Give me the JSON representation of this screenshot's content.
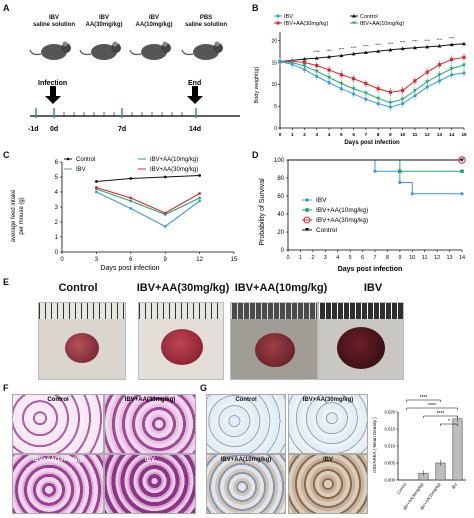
{
  "panels": {
    "A": "A",
    "B": "B",
    "C": "C",
    "D": "D",
    "E": "E",
    "F": "F",
    "G": "G"
  },
  "panelA": {
    "groups": [
      {
        "line1": "IBV",
        "line2": "saline solution"
      },
      {
        "line1": "IBV",
        "line2": "AA(30mg/kg)"
      },
      {
        "line1": "IBV",
        "line2": "AA(10mg/kg)"
      },
      {
        "line1": "PBS",
        "line2": "saline solution"
      }
    ],
    "infection_label": "Infection",
    "end_label": "End",
    "ticks": [
      "-1d",
      "0d",
      "7d",
      "14d"
    ]
  },
  "panelB": {
    "legend": [
      "IBV",
      "IBV+AA(30mg/kg)",
      "Control",
      "IBV+AA(10mg/kg)"
    ],
    "colors": {
      "ibv": "#3b9be0",
      "aa30": "#e0262b",
      "control": "#111111",
      "aa10": "#23a86b"
    },
    "ylabel": "Body weight(g)",
    "xlabel": "Days post infection",
    "yticks": [
      "0",
      "5",
      "10",
      "15",
      "20"
    ]
  },
  "chart_data": [
    {
      "type": "line",
      "panel": "B",
      "xlabel": "Days post infection",
      "ylabel": "Body weight(g)",
      "x": [
        0,
        1,
        2,
        3,
        4,
        5,
        6,
        7,
        8,
        9,
        10,
        11,
        12,
        13,
        14,
        15
      ],
      "ylim": [
        0,
        22
      ],
      "series": [
        {
          "name": "Control",
          "values": [
            15.2,
            15.5,
            15.8,
            16.0,
            16.3,
            16.6,
            17.0,
            17.3,
            17.6,
            17.9,
            18.2,
            18.4,
            18.6,
            18.8,
            19.1,
            19.3
          ]
        },
        {
          "name": "IBV+AA(30mg/kg)",
          "values": [
            15.2,
            15.3,
            15.0,
            14.3,
            13.3,
            12.2,
            11.3,
            10.2,
            9.0,
            8.2,
            8.6,
            10.8,
            12.8,
            14.5,
            15.7,
            16.2
          ]
        },
        {
          "name": "IBV+AA(10mg/kg)",
          "values": [
            15.2,
            15.0,
            14.2,
            13.0,
            11.6,
            10.2,
            9.0,
            8.0,
            6.8,
            5.8,
            6.6,
            8.6,
            10.6,
            12.2,
            13.6,
            14.4
          ]
        },
        {
          "name": "IBV",
          "values": [
            15.2,
            14.6,
            13.4,
            11.8,
            10.4,
            9.0,
            7.8,
            6.6,
            5.6,
            4.8,
            5.6,
            7.4,
            9.4,
            10.8,
            12.2,
            12.6
          ]
        }
      ]
    },
    {
      "type": "line",
      "panel": "C",
      "xlabel": "Days post infection",
      "ylabel": "average feed intake per mouse (g)",
      "x": [
        3,
        6,
        9,
        12
      ],
      "xticks": [
        0,
        3,
        6,
        9,
        12,
        15
      ],
      "yticks": [
        0,
        1,
        2,
        3,
        4,
        5,
        6
      ],
      "xlim": [
        0,
        15
      ],
      "ylim": [
        0,
        6
      ],
      "series": [
        {
          "name": "Control",
          "values": [
            4.7,
            4.9,
            5.0,
            5.1
          ]
        },
        {
          "name": "IBV",
          "values": [
            4.0,
            2.9,
            1.7,
            3.4
          ]
        },
        {
          "name": "IBV+AA(10mg/kg)",
          "values": [
            4.2,
            3.4,
            2.5,
            3.6
          ]
        },
        {
          "name": "IBV+AA(30mg/kg)",
          "values": [
            4.3,
            3.6,
            2.6,
            3.9
          ]
        }
      ]
    },
    {
      "type": "line",
      "panel": "D",
      "xlabel": "Days post infection",
      "ylabel": "Probability of Survival",
      "xticks": [
        0,
        1,
        2,
        3,
        4,
        5,
        6,
        7,
        8,
        9,
        10,
        11,
        12,
        13,
        14
      ],
      "yticks": [
        0,
        20,
        40,
        60,
        80,
        100
      ],
      "xlim": [
        0,
        14
      ],
      "ylim": [
        0,
        100
      ],
      "series": [
        {
          "name": "IBV",
          "steps": [
            [
              0,
              100
            ],
            [
              7,
              100
            ],
            [
              7,
              87.5
            ],
            [
              9,
              87.5
            ],
            [
              9,
              75
            ],
            [
              10,
              75
            ],
            [
              10,
              62.5
            ],
            [
              14,
              62.5
            ]
          ]
        },
        {
          "name": "IBV+AA(10mg/kg)",
          "steps": [
            [
              0,
              100
            ],
            [
              9,
              100
            ],
            [
              9,
              87.5
            ],
            [
              14,
              87.5
            ]
          ]
        },
        {
          "name": "IBV+AA(30mg/kg)",
          "steps": [
            [
              0,
              100
            ],
            [
              14,
              100
            ]
          ]
        },
        {
          "name": "Control",
          "steps": [
            [
              0,
              100
            ],
            [
              14,
              100
            ]
          ]
        }
      ]
    },
    {
      "type": "bar",
      "panel": "G",
      "ylabel": "IOD/AREA ( Mean Density )",
      "categories": [
        "Control",
        "IBV+AA(30mg/kg)",
        "IBV+AA(10mg/kg)",
        "IBV"
      ],
      "values": [
        0.0,
        0.002,
        0.005,
        0.018
      ],
      "ylim": [
        0,
        0.02
      ],
      "yticks": [
        "0.000",
        "0.005",
        "0.010",
        "0.015",
        "0.020"
      ],
      "significance": [
        "*",
        "****",
        "****",
        "****"
      ]
    }
  ],
  "panelC": {
    "legend": [
      "Control",
      "IBV",
      "IBV+AA(10mg/kg)",
      "IBV+AA(30mg/kg)"
    ],
    "colors": {
      "control": "#111111",
      "ibv": "#3b9be0",
      "aa10": "#23a86b",
      "aa30": "#e0262b"
    }
  },
  "panelD": {
    "legend": [
      "IBV",
      "IBV+AA(10mg/kg)",
      "IBV+AA(30mg/kg)",
      "Control"
    ]
  },
  "panelE": {
    "headers": [
      "Control",
      "IBV+AA(30mg/kg)",
      "IBV+AA(10mg/kg)",
      "IBV"
    ]
  },
  "panelF": {
    "labels": [
      "Control",
      "IBV+AA(30mg/kg)",
      "IBV+AA(10mg/kg)",
      "IBV"
    ]
  },
  "panelG": {
    "labels": [
      "Control",
      "IBV+AA(30mg/kg)",
      "IBV+AA(10mg/kg)",
      "IBV"
    ]
  }
}
